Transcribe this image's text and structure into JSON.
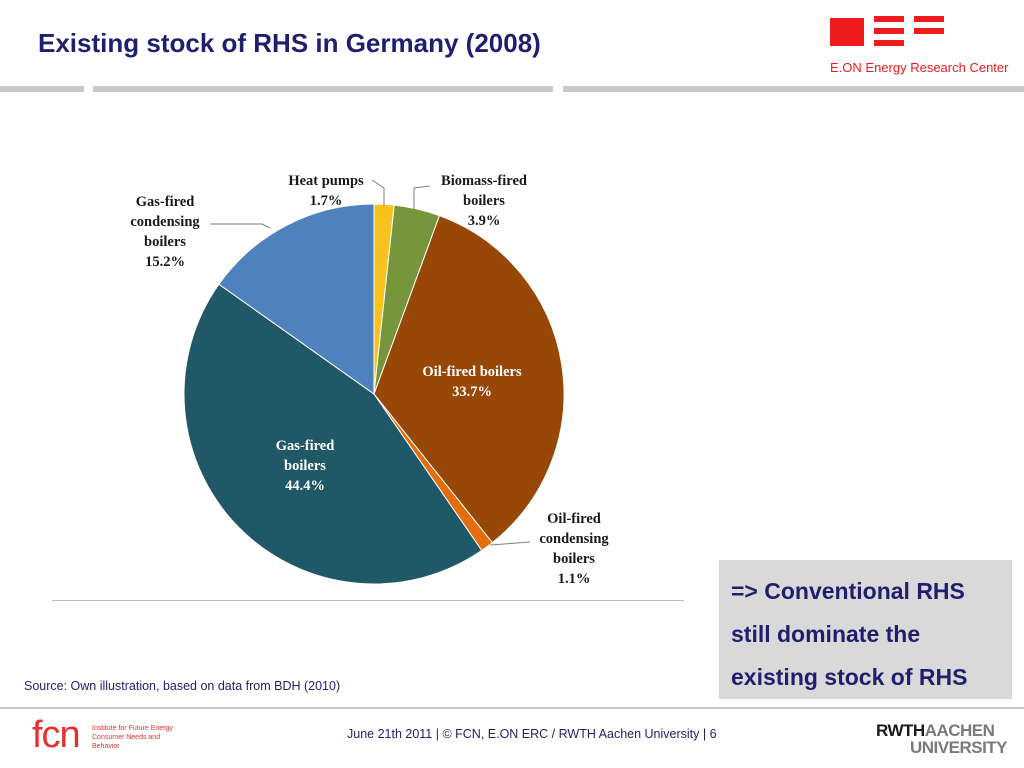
{
  "slide": {
    "title": "Existing stock of RHS in Germany (2008)",
    "source": "Source: Own illustration, based on data from BDH (2010)",
    "footer": "June 21th 2011 | © FCN, E.ON ERC / RWTH Aachen University | 6",
    "callout": [
      "=> Conventional RHS",
      "still dominate the",
      "existing stock of RHS"
    ]
  },
  "logos": {
    "eon_name": "E.ON Energy Research Center",
    "fcn_mark": "fcn",
    "fcn_sub": "Institute for Future Energy Consumer Needs and Behavior",
    "rwth_a": "RWTH",
    "rwth_b": "AACHEN",
    "rwth_c": "UNIVERSITY",
    "colors": {
      "eon_red": "#ee1c1c",
      "fcn_red": "#e4322b",
      "title_blue": "#1f1f6e"
    }
  },
  "chart_data": {
    "type": "pie",
    "title": "",
    "start": "12 o'clock, clockwise",
    "slices": [
      {
        "label": [
          "Heat pumps"
        ],
        "value": 1.7,
        "value_label": "1.7%",
        "color": "#f8c31e"
      },
      {
        "label": [
          "Biomass-fired",
          "boilers"
        ],
        "value": 3.9,
        "value_label": "3.9%",
        "color": "#77953b"
      },
      {
        "label": [
          "Oil-fired boilers"
        ],
        "value": 33.7,
        "value_label": "33.7%",
        "color": "#974806"
      },
      {
        "label": [
          "Oil-fired",
          "condensing",
          "boilers"
        ],
        "value": 1.1,
        "value_label": "1.1%",
        "color": "#e46c0a"
      },
      {
        "label": [
          "Gas-fired",
          "boilers"
        ],
        "value": 44.4,
        "value_label": "44.4%",
        "color": "#215867"
      },
      {
        "label": [
          "Gas-fired",
          "condensing",
          "boilers"
        ],
        "value": 15.2,
        "value_label": "15.2%",
        "color": "#4f81bd"
      }
    ]
  }
}
